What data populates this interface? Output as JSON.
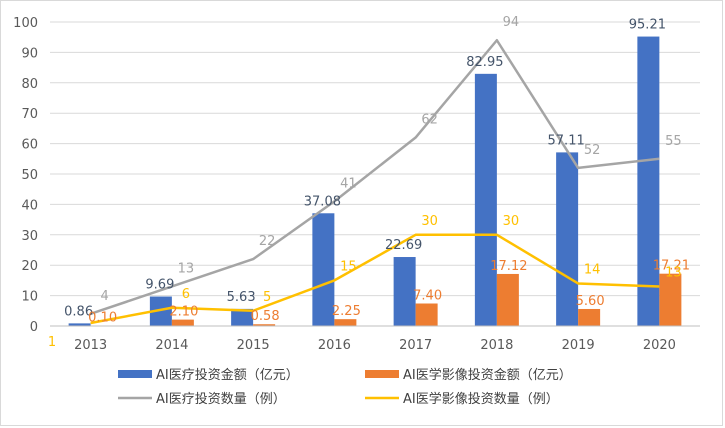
{
  "chart_data": {
    "type": "bar",
    "categories": [
      "2013",
      "2014",
      "2015",
      "2016",
      "2017",
      "2018",
      "2019",
      "2020"
    ],
    "ylim": [
      0,
      100
    ],
    "yticks": [
      0,
      10,
      20,
      30,
      40,
      50,
      60,
      70,
      80,
      90,
      100
    ],
    "grid": true,
    "legend_position": "bottom",
    "series": [
      {
        "name": "AI医疗投资金额（亿元）",
        "kind": "bar",
        "color": "#4472C4",
        "values": [
          0.86,
          9.69,
          5.63,
          37.08,
          22.69,
          82.95,
          57.11,
          95.21
        ],
        "labels": [
          "0.86",
          "9.69",
          "5.63",
          "37.08",
          "22.69",
          "82.95",
          "57.11",
          "95.21"
        ],
        "label_color": "#44546A"
      },
      {
        "name": "AI医学影像投资金额（亿元）",
        "kind": "bar",
        "color": "#ED7D31",
        "values": [
          0.1,
          2.1,
          0.58,
          2.25,
          7.4,
          17.12,
          5.6,
          17.21
        ],
        "labels": [
          "0.10",
          "2.10",
          "0.58",
          "2.25",
          "7.40",
          "17.12",
          "5.60",
          "17.21"
        ],
        "label_color": "#ED7D31"
      },
      {
        "name": "AI医疗投资数量（例）",
        "kind": "line",
        "color": "#A5A5A5",
        "values": [
          4,
          13,
          22,
          41,
          62,
          94,
          52,
          55
        ],
        "labels": [
          "4",
          "13",
          "22",
          "41",
          "62",
          "94",
          "52",
          "55"
        ],
        "label_color": "#A5A5A5"
      },
      {
        "name": "AI医学影像投资数量（例）",
        "kind": "line",
        "color": "#FFC000",
        "values": [
          1,
          6,
          5,
          15,
          30,
          30,
          14,
          13
        ],
        "labels": [
          "1",
          "6",
          "5",
          "15",
          "30",
          "30",
          "14",
          "13"
        ],
        "label_color": "#FFC000"
      }
    ]
  }
}
